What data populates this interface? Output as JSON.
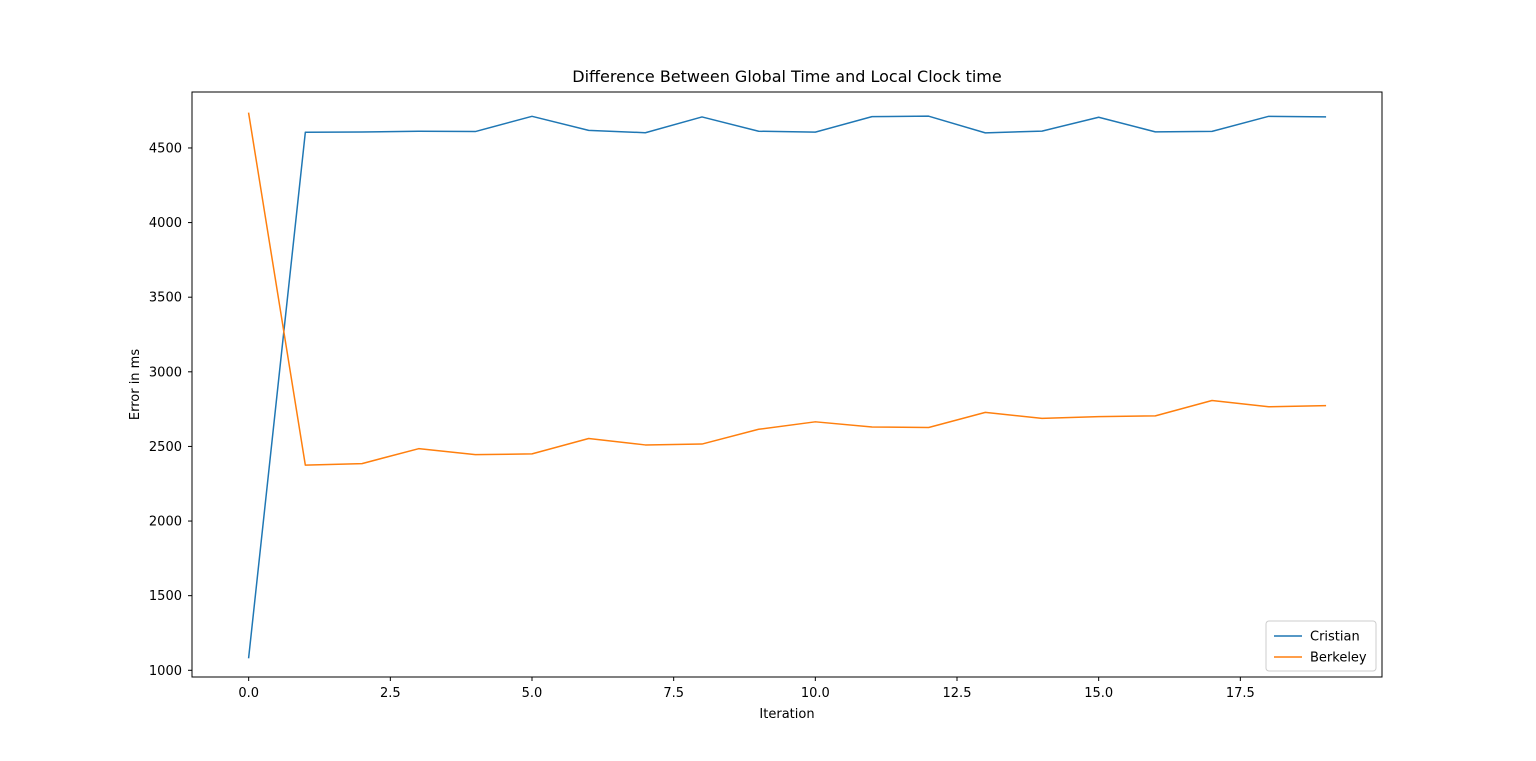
{
  "chart_data": {
    "type": "line",
    "title": "Difference Between Global Time and Local Clock time",
    "xlabel": "Iteration",
    "ylabel": "Error in ms",
    "xlim": [
      -1.0,
      20.0
    ],
    "ylim": [
      955,
      4875
    ],
    "x_ticks": [
      0.0,
      2.5,
      5.0,
      7.5,
      10.0,
      12.5,
      15.0,
      17.5
    ],
    "x_tick_labels": [
      "0.0",
      "2.5",
      "5.0",
      "7.5",
      "10.0",
      "12.5",
      "15.0",
      "17.5"
    ],
    "y_ticks": [
      1000,
      1500,
      2000,
      2500,
      3000,
      3500,
      4000,
      4500
    ],
    "y_tick_labels": [
      "1000",
      "1500",
      "2000",
      "2500",
      "3000",
      "3500",
      "4000",
      "4500"
    ],
    "grid": false,
    "legend_position": "lower-right",
    "x": [
      0,
      1,
      2,
      3,
      4,
      5,
      6,
      7,
      8,
      9,
      10,
      11,
      12,
      13,
      14,
      15,
      16,
      17,
      18,
      19
    ],
    "series": [
      {
        "name": "Cristian",
        "color": "#1f77b4",
        "values": [
          1085,
          4605,
          4607,
          4612,
          4610,
          4712,
          4618,
          4602,
          4708,
          4612,
          4606,
          4710,
          4713,
          4601,
          4613,
          4706,
          4608,
          4611,
          4712,
          4708
        ]
      },
      {
        "name": "Berkeley",
        "color": "#ff7f0e",
        "values": [
          4732,
          2375,
          2385,
          2485,
          2445,
          2450,
          2553,
          2510,
          2516,
          2615,
          2665,
          2630,
          2627,
          2728,
          2688,
          2700,
          2705,
          2808,
          2766,
          2773
        ]
      }
    ]
  }
}
